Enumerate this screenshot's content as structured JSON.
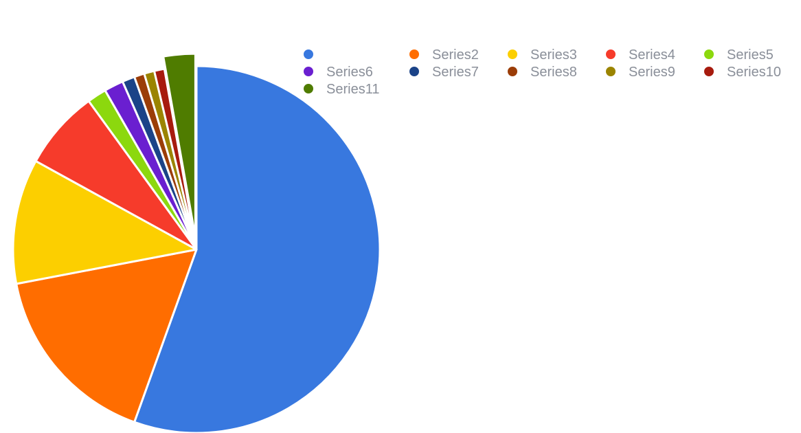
{
  "chart_data": {
    "type": "pie",
    "series": [
      {
        "name": "",
        "value": 55.5,
        "color": "#3878df",
        "exploded": false
      },
      {
        "name": "Series2",
        "value": 16.5,
        "color": "#ff6d00",
        "exploded": false
      },
      {
        "name": "Series3",
        "value": 11.0,
        "color": "#fccf00",
        "exploded": false
      },
      {
        "name": "Series4",
        "value": 7.0,
        "color": "#f63b2b",
        "exploded": false
      },
      {
        "name": "Series5",
        "value": 1.7,
        "color": "#8cd80e",
        "exploded": false
      },
      {
        "name": "Series6",
        "value": 1.7,
        "color": "#6a1fd0",
        "exploded": false
      },
      {
        "name": "Series7",
        "value": 1.1,
        "color": "#1b4388",
        "exploded": false
      },
      {
        "name": "Series8",
        "value": 0.9,
        "color": "#9b3d08",
        "exploded": false
      },
      {
        "name": "Series9",
        "value": 0.9,
        "color": "#9b8400",
        "exploded": false
      },
      {
        "name": "Series10",
        "value": 0.9,
        "color": "#a71b0e",
        "exploded": false
      },
      {
        "name": "Series11",
        "value": 2.8,
        "color": "#4f7c00",
        "exploded": true
      }
    ],
    "legend_position": "top-right",
    "title": "",
    "grid": false
  }
}
